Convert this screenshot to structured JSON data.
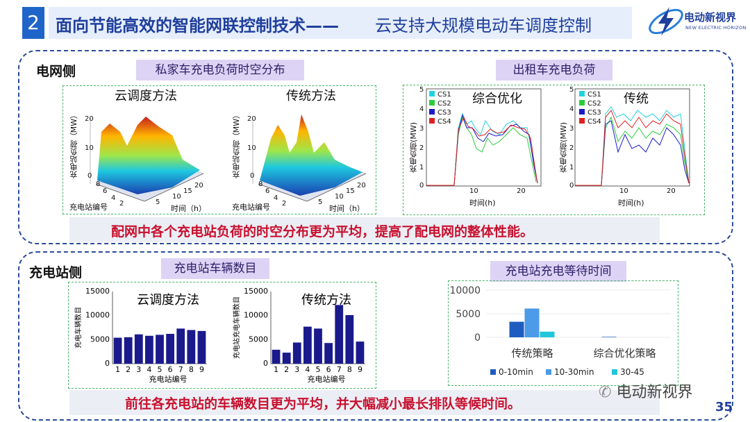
{
  "header": {
    "number": "2",
    "title": "面向节能高效的智能网联控制技术——",
    "subtitle": "云支持大规模电动车调度控制",
    "logo_text": "电动新视界",
    "logo_sub": "NEW ELECTRIC HORIZON"
  },
  "grid_section": {
    "label": "电网侧",
    "private_title": "私家车充电负荷时空分布",
    "taxi_title": "出租车充电负荷",
    "surface_left_title": "云调度方法",
    "surface_right_title": "传统方法",
    "surface_zlabel": "充电站负荷（MW）",
    "surface_station_label": "充电站编号",
    "surface_time_label": "时间（h）",
    "surface_ticks_z": [
      "20",
      "10",
      "0"
    ],
    "surface_ticks_station": [
      "8",
      "6",
      "4",
      "2"
    ],
    "surface_ticks_time": [
      "5",
      "10",
      "15",
      "20"
    ],
    "taxi_left_title": "综合优化",
    "taxi_right_title": "传统",
    "taxi_ylabel": "充电负荷(MW)",
    "taxi_xlabel": "时间(h)",
    "taxi_yticks": [
      "5",
      "4",
      "3",
      "2",
      "1",
      "0"
    ],
    "taxi_xticks": [
      "10",
      "20"
    ],
    "taxi_legend": [
      "CS1",
      "CS2",
      "CS3",
      "CS4"
    ],
    "conclusion": "配网中各个充电站负荷的时空分布更为平均，提高了配电网的整体性能。"
  },
  "station_section": {
    "label": "充电站侧",
    "count_title": "充电站车辆数目",
    "wait_title": "充电站充电等待时间",
    "conclusion": "前往各充电站的车辆数目更为平均，并大幅减小最长排队等候时间。"
  },
  "chart_data": [
    {
      "type": "bar",
      "title": "云调度方法",
      "xlabel": "充电站编号",
      "ylabel": "充电车辆数目",
      "categories": [
        "1",
        "2",
        "3",
        "4",
        "5",
        "6",
        "7",
        "8",
        "9"
      ],
      "values": [
        5400,
        5500,
        6100,
        5800,
        6000,
        6200,
        7300,
        7000,
        6800
      ],
      "ylim": [
        0,
        15000
      ],
      "yticks": [
        0,
        5000,
        10000,
        15000
      ],
      "color": "#1a1a8c"
    },
    {
      "type": "bar",
      "title": "传统方法",
      "xlabel": "充电站编号",
      "ylabel": "充电站充电车辆数目",
      "categories": [
        "1",
        "2",
        "3",
        "4",
        "5",
        "6",
        "7",
        "8",
        "9"
      ],
      "values": [
        2900,
        2300,
        4400,
        7700,
        7300,
        4300,
        12200,
        10100,
        4600
      ],
      "ylim": [
        0,
        15000
      ],
      "yticks": [
        0,
        5000,
        10000,
        15000
      ],
      "color": "#1a1a8c"
    },
    {
      "type": "bar",
      "title": "",
      "categories": [
        "传统策略",
        "综合优化策略"
      ],
      "series": [
        {
          "name": "0-10min",
          "values": [
            3300,
            100
          ],
          "color": "#1f5cc0"
        },
        {
          "name": "10-30min",
          "values": [
            6100,
            0
          ],
          "color": "#4b9be8"
        },
        {
          "name": "30-45",
          "values": [
            1200,
            0
          ],
          "color": "#21c6d9"
        }
      ],
      "ylim": [
        0,
        10000
      ],
      "yticks": [
        0,
        5000,
        10000
      ],
      "legend": "bottom"
    }
  ],
  "footer": {
    "watermark": "电动新视界",
    "page": "35"
  }
}
